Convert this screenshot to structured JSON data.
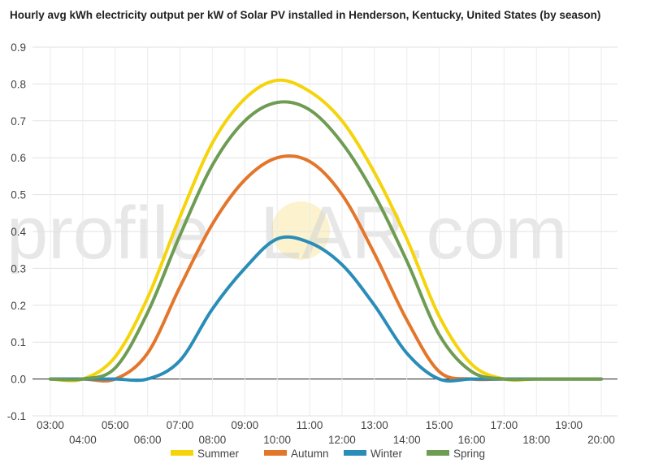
{
  "chart_data": {
    "type": "line",
    "title": "Hourly avg kWh electricity output per kW of Solar PV installed in Henderson, Kentucky, United States (by season)",
    "watermark": [
      "profile",
      "S",
      "LAR.com"
    ],
    "x": [
      "03:00",
      "04:00",
      "05:00",
      "06:00",
      "07:00",
      "08:00",
      "09:00",
      "10:00",
      "11:00",
      "12:00",
      "13:00",
      "14:00",
      "15:00",
      "16:00",
      "17:00",
      "18:00",
      "19:00",
      "20:00"
    ],
    "yticks": [
      "0.9",
      "0.8",
      "0.7",
      "0.6",
      "0.5",
      "0.4",
      "0.3",
      "0.2",
      "0.1",
      "0.0",
      "-0.1"
    ],
    "ylim": [
      -0.1,
      0.9
    ],
    "grid": true,
    "legend_position": "bottom",
    "series": [
      {
        "name": "Summer",
        "color": "#f5d40b",
        "values": [
          0.0,
          0.0,
          0.06,
          0.22,
          0.44,
          0.64,
          0.76,
          0.81,
          0.78,
          0.7,
          0.56,
          0.38,
          0.17,
          0.04,
          0.0,
          0.0,
          0.0,
          0.0
        ]
      },
      {
        "name": "Autumn",
        "color": "#e4762b",
        "values": [
          0.0,
          0.0,
          0.0,
          0.07,
          0.25,
          0.42,
          0.54,
          0.6,
          0.59,
          0.5,
          0.34,
          0.16,
          0.02,
          0.0,
          0.0,
          0.0,
          0.0,
          0.0
        ]
      },
      {
        "name": "Winter",
        "color": "#2a8db8",
        "values": [
          0.0,
          0.0,
          0.0,
          0.0,
          0.05,
          0.19,
          0.3,
          0.38,
          0.37,
          0.31,
          0.2,
          0.07,
          0.0,
          0.0,
          0.0,
          0.0,
          0.0,
          0.0
        ]
      },
      {
        "name": "Spring",
        "color": "#6e9c52",
        "values": [
          0.0,
          0.0,
          0.03,
          0.18,
          0.39,
          0.58,
          0.7,
          0.75,
          0.73,
          0.64,
          0.5,
          0.32,
          0.12,
          0.02,
          0.0,
          0.0,
          0.0,
          0.0
        ]
      }
    ]
  }
}
